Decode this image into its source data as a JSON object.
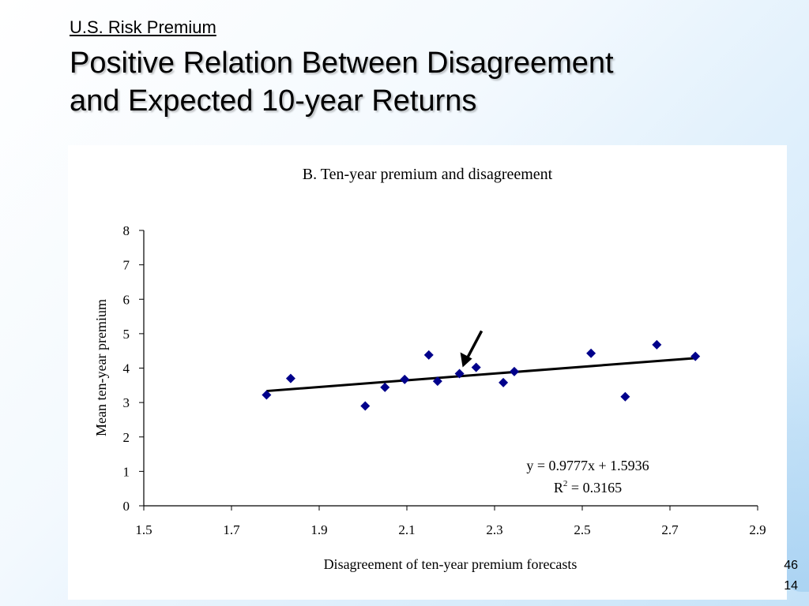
{
  "slide": {
    "subtitle": "U.S. Risk Premium",
    "title_line1": "Positive Relation Between Disagreement",
    "title_line2": "and Expected 10-year Returns",
    "page_number_top": "46",
    "page_number_bottom": "14"
  },
  "chart_data": {
    "type": "scatter",
    "title": "B. Ten-year premium and disagreement",
    "xlabel": "Disagreement of ten-year premium forecasts",
    "ylabel": "Mean ten-year premium",
    "xlim": [
      1.5,
      2.9
    ],
    "ylim": [
      0,
      8
    ],
    "xticks": [
      "1.5",
      "1.7",
      "1.9",
      "2.1",
      "2.3",
      "2.5",
      "2.7",
      "2.9"
    ],
    "yticks": [
      "0",
      "1",
      "2",
      "3",
      "4",
      "5",
      "6",
      "7",
      "8"
    ],
    "grid": false,
    "marker_color": "#00008b",
    "points": [
      {
        "x": 1.78,
        "y": 3.22
      },
      {
        "x": 1.835,
        "y": 3.7
      },
      {
        "x": 2.005,
        "y": 2.9
      },
      {
        "x": 2.05,
        "y": 3.44
      },
      {
        "x": 2.095,
        "y": 3.67
      },
      {
        "x": 2.15,
        "y": 4.38
      },
      {
        "x": 2.17,
        "y": 3.62
      },
      {
        "x": 2.22,
        "y": 3.84
      },
      {
        "x": 2.258,
        "y": 4.02
      },
      {
        "x": 2.32,
        "y": 3.58
      },
      {
        "x": 2.345,
        "y": 3.9
      },
      {
        "x": 2.52,
        "y": 4.43
      },
      {
        "x": 2.598,
        "y": 3.17
      },
      {
        "x": 2.67,
        "y": 4.68
      },
      {
        "x": 2.758,
        "y": 4.34
      }
    ],
    "trendline": {
      "slope": 0.9777,
      "intercept": 1.5936,
      "x_range": [
        1.78,
        2.758
      ],
      "equation": "y = 0.9777x + 1.5936",
      "r2_prefix": "R",
      "r2_sup": "2",
      "r2_suffix": " = 0.3165"
    },
    "annotation": {
      "type": "arrow",
      "points_to": {
        "x": 2.22,
        "y": 3.84
      }
    }
  }
}
